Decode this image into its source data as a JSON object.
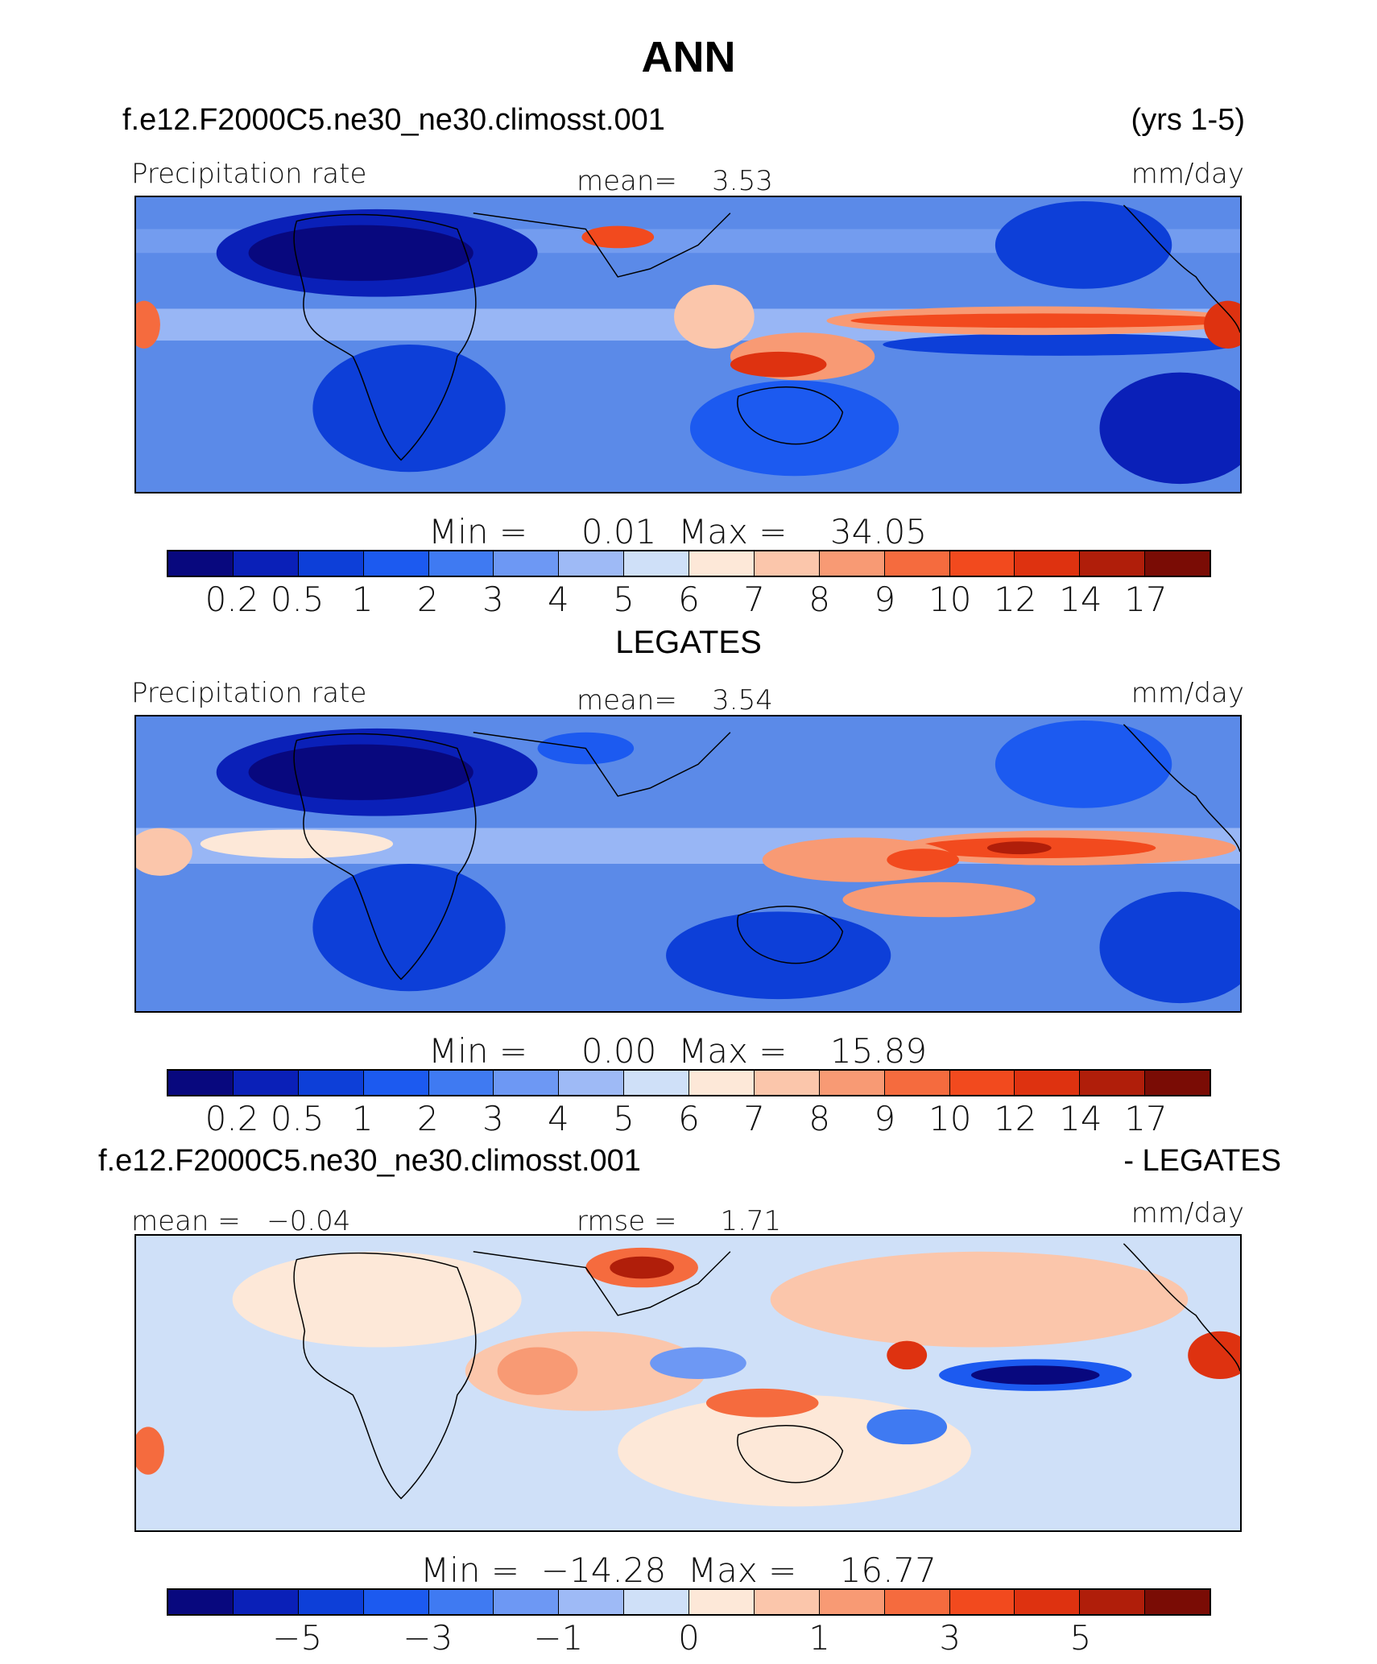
{
  "title": "ANN",
  "case_name": "f.e12.F2000C5.ne30_ne30.climosst.001",
  "years": "(yrs 1-5)",
  "colors_main": [
    "#08087e",
    "#0a20b8",
    "#0d3fd8",
    "#1c5af0",
    "#3f7af2",
    "#6d98f4",
    "#9ebaf6",
    "#cfe0f8",
    "#fde8d8",
    "#fbc6ab",
    "#f89a74",
    "#f56b3e",
    "#f24a1e",
    "#de3210",
    "#b01e0a",
    "#7a0c05"
  ],
  "colors_diff": [
    "#08087e",
    "#0a20b8",
    "#0d3fd8",
    "#1c5af0",
    "#3f7af2",
    "#6d98f4",
    "#9ebaf6",
    "#cfe0f8",
    "#fde8d8",
    "#fbc6ab",
    "#f89a74",
    "#f56b3e",
    "#f24a1e",
    "#de3210",
    "#b01e0a",
    "#7a0c05"
  ],
  "panel1": {
    "variable": "Precipitation rate",
    "mean_label": "mean=",
    "mean_value": "3.53",
    "units": "mm/day",
    "min_label": "Min  =",
    "min_value": "0.01",
    "max_label": "Max  =",
    "max_value": "34.05",
    "ticks": [
      "0.2",
      "0.5",
      "1",
      "2",
      "3",
      "4",
      "5",
      "6",
      "7",
      "8",
      "9",
      "10",
      "12",
      "14",
      "17"
    ]
  },
  "obs_title": "LEGATES",
  "panel2": {
    "variable": "Precipitation rate",
    "mean_label": "mean=",
    "mean_value": "3.54",
    "units": "mm/day",
    "min_label": "Min  =",
    "min_value": "0.00",
    "max_label": "Max  =",
    "max_value": "15.89",
    "ticks": [
      "0.2",
      "0.5",
      "1",
      "2",
      "3",
      "4",
      "5",
      "6",
      "7",
      "8",
      "9",
      "10",
      "12",
      "14",
      "17"
    ]
  },
  "diff_case": "f.e12.F2000C5.ne30_ne30.climosst.001",
  "diff_obs": "- LEGATES",
  "panel3": {
    "mean_label": "mean  =",
    "mean_value": "−0.04",
    "rmse_label": "rmse  =",
    "rmse_value": "1.71",
    "units": "mm/day",
    "min_label": "Min  =",
    "min_value": "−14.28",
    "max_label": "Max  =",
    "max_value": "16.77",
    "ticks": [
      "−5",
      "−3",
      "−1",
      "0",
      "1",
      "3",
      "5"
    ]
  }
}
